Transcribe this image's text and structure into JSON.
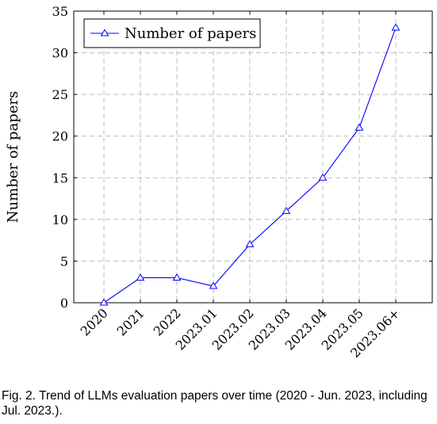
{
  "chart_data": {
    "type": "line",
    "categories": [
      "2020",
      "2021",
      "2022",
      "2023.01",
      "2023.02",
      "2023.03",
      "2023.04",
      "2023.05",
      "2023.06+"
    ],
    "series": [
      {
        "name": "Number of papers",
        "values": [
          0,
          3,
          3,
          2,
          7,
          11,
          15,
          21,
          33
        ],
        "color": "#0000ff",
        "marker": "triangle"
      }
    ],
    "ylabel": "Number of papers",
    "xlabel": "",
    "ylim": [
      0,
      35
    ],
    "yticks": [
      0,
      5,
      10,
      15,
      20,
      25,
      30,
      35
    ],
    "grid": true,
    "legend_position": "top-left"
  },
  "caption": "Fig. 2. Trend of LLMs evaluation papers over time (2020 - Jun. 2023, including Jul. 2023.)."
}
